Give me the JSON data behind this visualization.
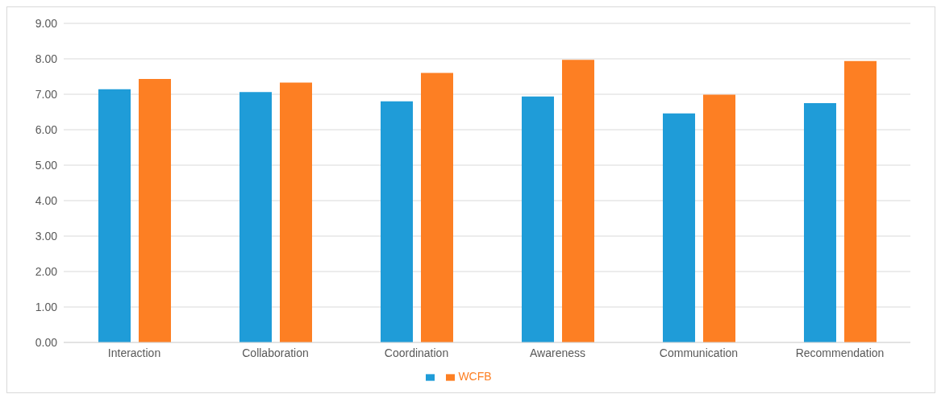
{
  "chart_data": {
    "type": "bar",
    "categories": [
      "Interaction",
      "Collaboration",
      "Coordination",
      "Awareness",
      "Communication",
      "Recommendation"
    ],
    "series": [
      {
        "color": "#1f9cd8",
        "values": [
          7.14,
          7.06,
          6.8,
          6.94,
          6.46,
          6.75
        ]
      },
      {
        "name": "WCFB",
        "color": "#fd7f23",
        "values": [
          7.43,
          7.33,
          7.6,
          7.97,
          6.99,
          7.94
        ]
      }
    ],
    "ylim": [
      0,
      9
    ],
    "yticks": [
      {
        "value": 0,
        "label": "0.00"
      },
      {
        "value": 1,
        "label": "1.00"
      },
      {
        "value": 2,
        "label": "2.00"
      },
      {
        "value": 3,
        "label": "3.00"
      },
      {
        "value": 4,
        "label": "4.00"
      },
      {
        "value": 5,
        "label": "5.00"
      },
      {
        "value": 6,
        "label": "6.00"
      },
      {
        "value": 7,
        "label": "7.00"
      },
      {
        "value": 8,
        "label": "8.00"
      },
      {
        "value": 9,
        "label": "9.00"
      }
    ],
    "grid": "y",
    "legend": "bottom"
  }
}
